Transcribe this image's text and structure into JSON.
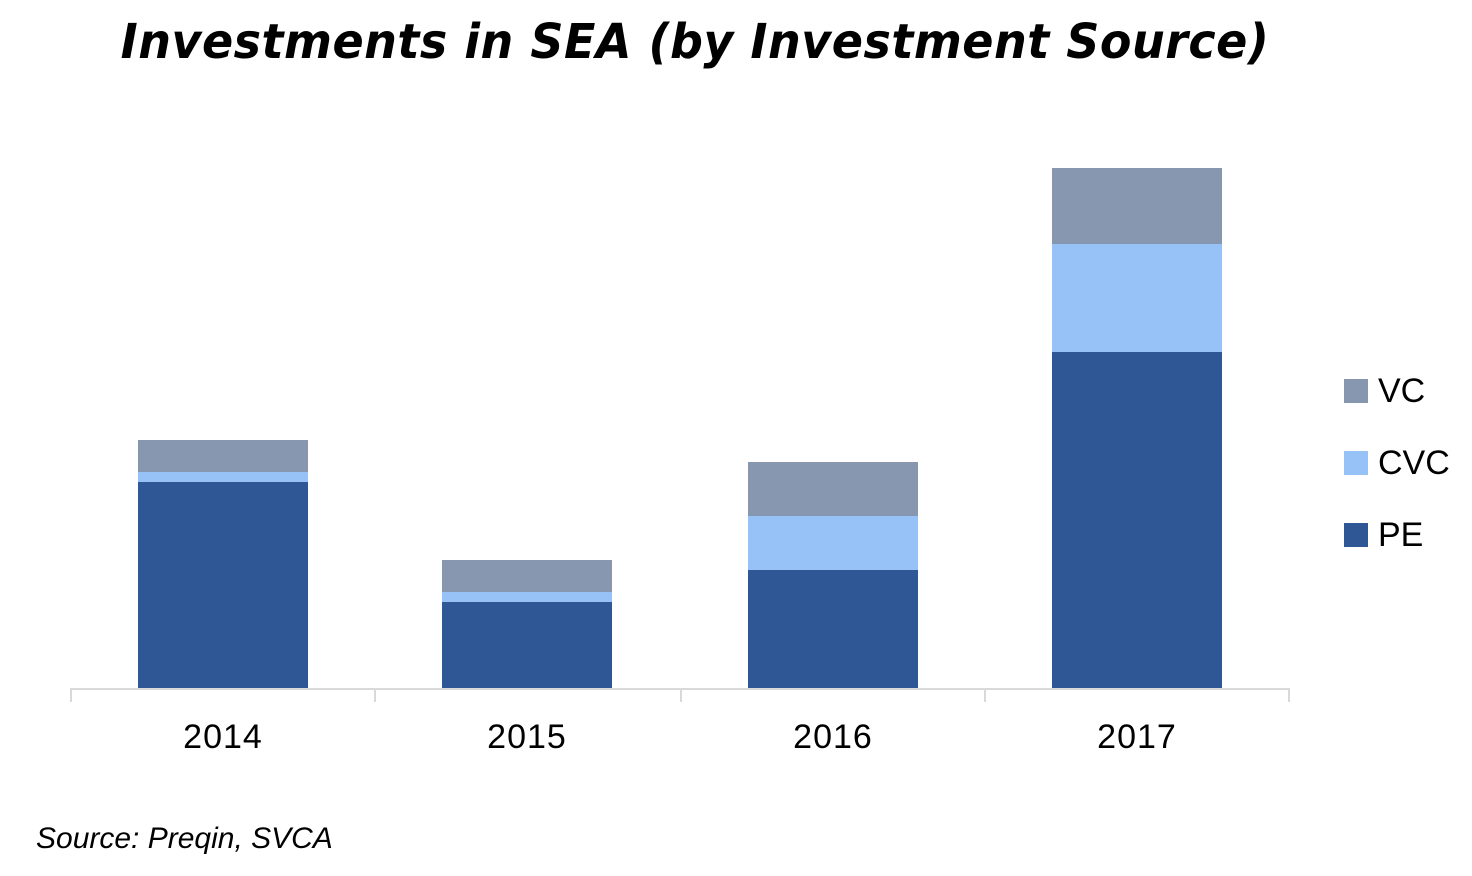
{
  "chart_data": {
    "type": "bar",
    "stacked": true,
    "title": "Investments in SEA (by Investment Source)",
    "xlabel": "",
    "ylabel": "",
    "y_axis_visible": false,
    "value_units": "relative (pixel-estimated, no y-axis shown)",
    "categories": [
      "2014",
      "2015",
      "2016",
      "2017"
    ],
    "series": [
      {
        "name": "PE",
        "color": "#305795",
        "values": [
          206,
          86,
          118,
          336
        ]
      },
      {
        "name": "CVC",
        "color": "#97C2F7",
        "values": [
          10,
          10,
          54,
          108
        ]
      },
      {
        "name": "VC",
        "color": "#8697AF",
        "values": [
          32,
          32,
          54,
          76
        ]
      }
    ],
    "totals": [
      248,
      128,
      226,
      520
    ],
    "legend": {
      "position": "right",
      "entries": [
        "VC",
        "CVC",
        "PE"
      ]
    },
    "grid": false,
    "source": "Source: Preqin, SVCA"
  },
  "title": "Investments in SEA (by Investment Source)",
  "x_labels": [
    "2014",
    "2015",
    "2016",
    "2017"
  ],
  "legend": [
    {
      "label": "VC",
      "color": "#8697AF"
    },
    {
      "label": "CVC",
      "color": "#97C2F7"
    },
    {
      "label": "PE",
      "color": "#305795"
    }
  ],
  "source": "Source: Preqin, SVCA"
}
